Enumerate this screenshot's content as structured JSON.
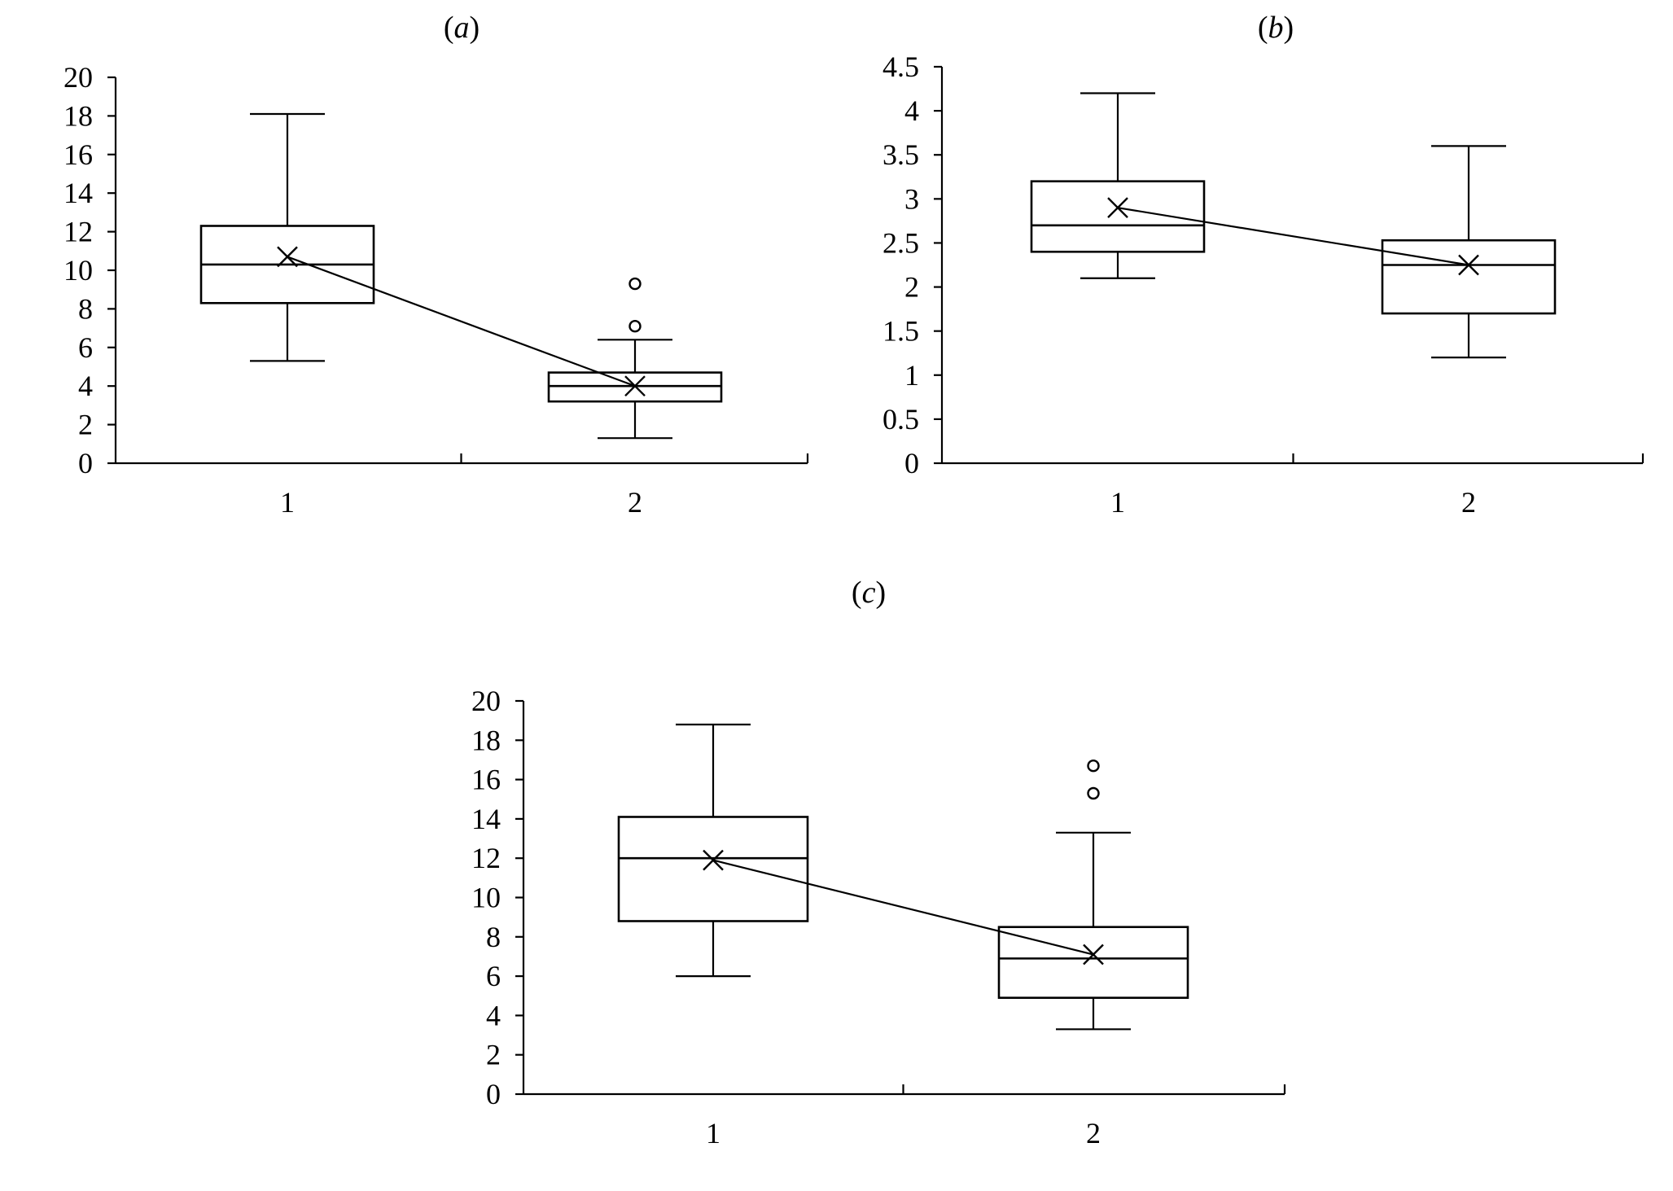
{
  "chart_data": [
    {
      "id": "a",
      "type": "box",
      "title_letter": "a",
      "categories": [
        "1",
        "2"
      ],
      "ylim": [
        0,
        20
      ],
      "yticks": [
        "0",
        "2",
        "4",
        "6",
        "8",
        "10",
        "12",
        "14",
        "16",
        "18",
        "20"
      ],
      "boxes": [
        {
          "category": "1",
          "whisker_low": 5.3,
          "q1": 8.3,
          "median": 10.3,
          "q3": 12.3,
          "whisker_high": 18.1,
          "mean": 10.7,
          "outliers": []
        },
        {
          "category": "2",
          "whisker_low": 1.3,
          "q1": 3.2,
          "median": 4.0,
          "q3": 4.7,
          "whisker_high": 6.4,
          "mean": 4.0,
          "outliers": [
            7.1,
            9.3
          ]
        }
      ]
    },
    {
      "id": "b",
      "type": "box",
      "title_letter": "b",
      "categories": [
        "1",
        "2"
      ],
      "ylim": [
        0,
        4.5
      ],
      "yticks": [
        "0",
        "0.5",
        "1",
        "1.5",
        "2",
        "2.5",
        "3",
        "3.5",
        "4",
        "4.5"
      ],
      "boxes": [
        {
          "category": "1",
          "whisker_low": 2.1,
          "q1": 2.4,
          "median": 2.7,
          "q3": 3.2,
          "whisker_high": 4.2,
          "mean": 2.9,
          "outliers": []
        },
        {
          "category": "2",
          "whisker_low": 1.2,
          "q1": 1.7,
          "median": 2.25,
          "q3": 2.53,
          "whisker_high": 3.6,
          "mean": 2.25,
          "outliers": []
        }
      ]
    },
    {
      "id": "c",
      "type": "box",
      "title_letter": "c",
      "categories": [
        "1",
        "2"
      ],
      "ylim": [
        0,
        20
      ],
      "yticks": [
        "0",
        "2",
        "4",
        "6",
        "8",
        "10",
        "12",
        "14",
        "16",
        "18",
        "20"
      ],
      "boxes": [
        {
          "category": "1",
          "whisker_low": 6.0,
          "q1": 8.8,
          "median": 12.0,
          "q3": 14.1,
          "whisker_high": 18.8,
          "mean": 11.9,
          "outliers": []
        },
        {
          "category": "2",
          "whisker_low": 3.3,
          "q1": 4.9,
          "median": 6.9,
          "q3": 8.5,
          "whisker_high": 13.3,
          "mean": 7.1,
          "outliers": [
            15.3,
            16.7
          ]
        }
      ]
    }
  ]
}
